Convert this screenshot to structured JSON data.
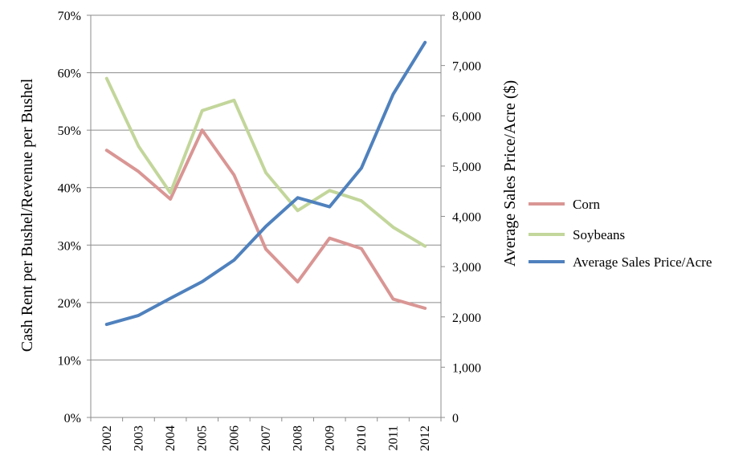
{
  "chart_data": {
    "type": "line",
    "x": [
      "2002",
      "2003",
      "2004",
      "2005",
      "2006",
      "2007",
      "2008",
      "2009",
      "2010",
      "2011",
      "2012"
    ],
    "ylabel_left": "Cash Rent per Bushel/Revenue per Bushel",
    "ylabel_right": "Average Sales Price/Acre ($)",
    "ylim_left": [
      0,
      70
    ],
    "ylim_right": [
      0,
      8000
    ],
    "yticks_left": [
      0,
      10,
      20,
      30,
      40,
      50,
      60,
      70
    ],
    "yticks_right": [
      0,
      1000,
      2000,
      3000,
      4000,
      5000,
      6000,
      7000,
      8000
    ],
    "grid": "horizontal",
    "legend_position": "right",
    "series": [
      {
        "name": "Corn",
        "axis": "left",
        "color": "#d99694",
        "values": [
          46.5,
          42.8,
          38.0,
          50.0,
          42.2,
          29.3,
          23.6,
          31.2,
          29.4,
          20.6,
          19.0
        ]
      },
      {
        "name": "Soybeans",
        "axis": "left",
        "color": "#c3d69b",
        "values": [
          59.0,
          47.2,
          39.1,
          53.4,
          55.2,
          42.6,
          36.0,
          39.5,
          37.7,
          33.1,
          29.8
        ]
      },
      {
        "name": "Average Sales Price/Acre",
        "axis": "right",
        "color": "#4f81bd",
        "values": [
          1850,
          2030,
          2370,
          2700,
          3130,
          3800,
          4370,
          4190,
          4960,
          6430,
          7460
        ]
      }
    ]
  }
}
